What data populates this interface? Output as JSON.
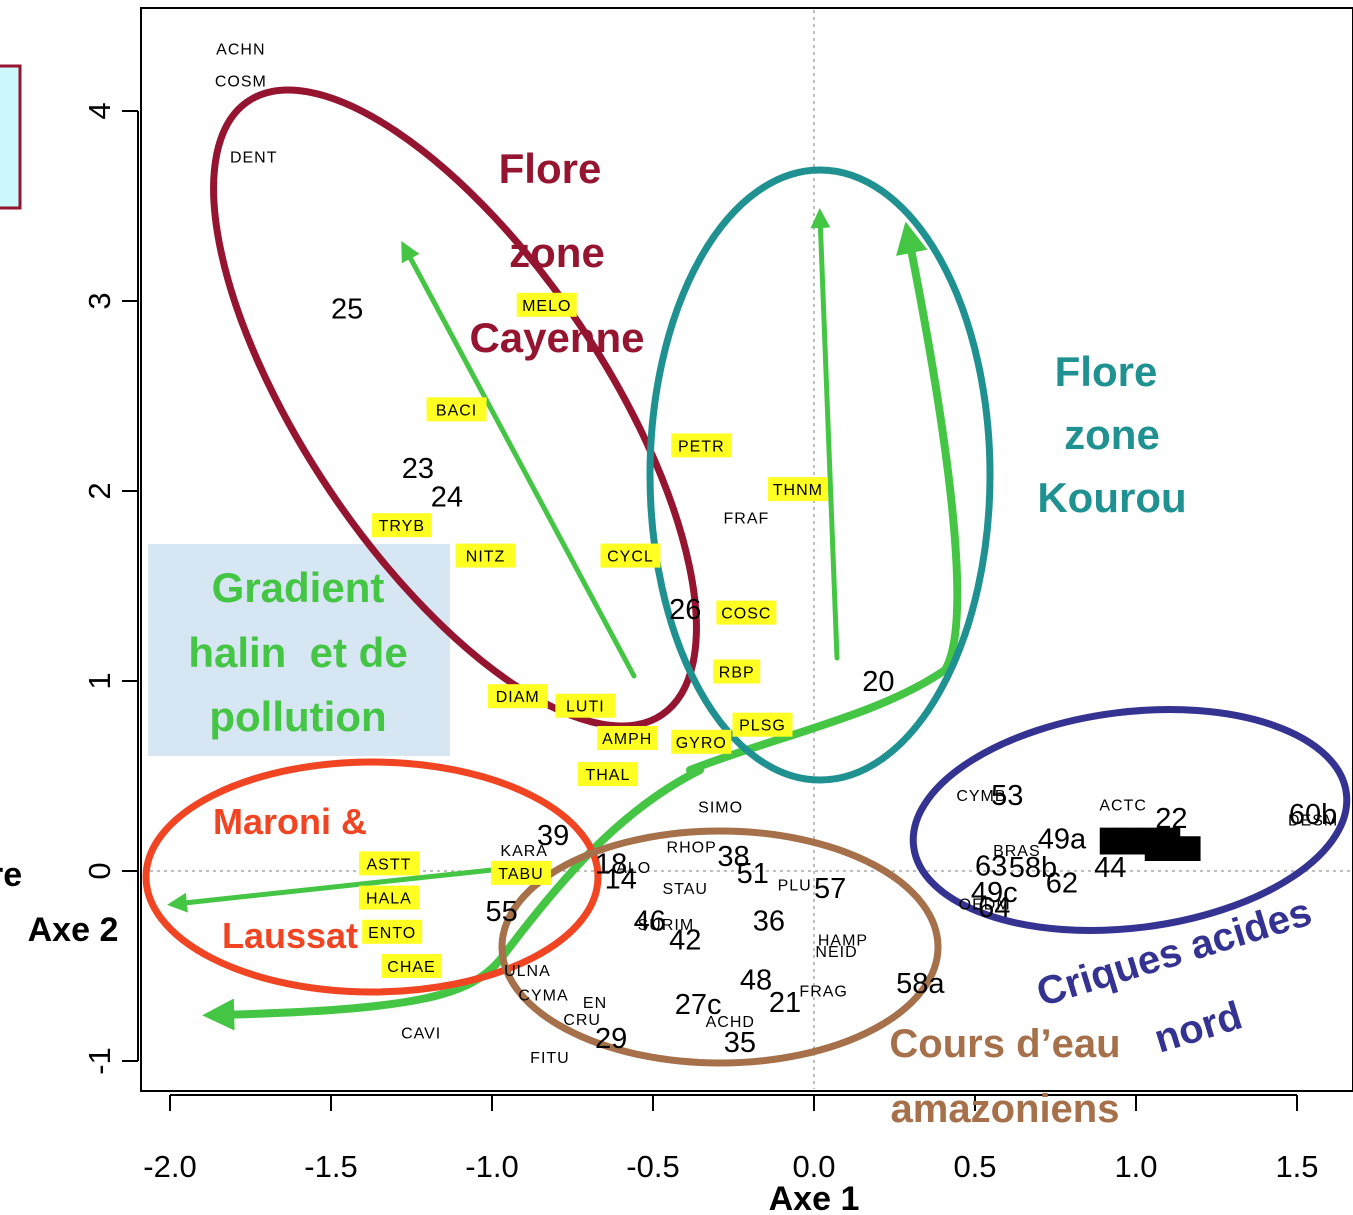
{
  "chart_data": {
    "type": "scatter",
    "title": "",
    "xlabel": "Axe 1",
    "ylabel": "Axe 2",
    "xlim": [
      -2.1,
      1.6
    ],
    "ylim": [
      -1.2,
      4.5
    ],
    "xticks": [
      "-2.0",
      "-1.5",
      "-1.0",
      "-0.5",
      "0.0",
      "0.5",
      "1.0",
      "1.5"
    ],
    "xtick_values": [
      -2.0,
      -1.5,
      -1.0,
      -0.5,
      0.0,
      0.5,
      1.0,
      1.5
    ],
    "yticks": [
      "-1",
      "0",
      "1",
      "2",
      "3",
      "4"
    ],
    "ytick_values": [
      -1,
      0,
      1,
      2,
      3,
      4
    ],
    "reference_lines": {
      "x": 0,
      "y": 0
    },
    "taxa_highlighted": [
      {
        "label": "MELO",
        "x": -0.83,
        "y": 2.98
      },
      {
        "label": "BACI",
        "x": -1.11,
        "y": 2.43
      },
      {
        "label": "PETR",
        "x": -0.35,
        "y": 2.24
      },
      {
        "label": "THNM",
        "x": -0.05,
        "y": 2.01
      },
      {
        "label": "TRYB",
        "x": -1.28,
        "y": 1.82
      },
      {
        "label": "NITZ",
        "x": -1.02,
        "y": 1.66
      },
      {
        "label": "CYCL",
        "x": -0.57,
        "y": 1.66
      },
      {
        "label": "COSC",
        "x": -0.21,
        "y": 1.36
      },
      {
        "label": "RBP",
        "x": -0.24,
        "y": 1.05
      },
      {
        "label": "DIAM",
        "x": -0.92,
        "y": 0.92
      },
      {
        "label": "LUTI",
        "x": -0.71,
        "y": 0.87
      },
      {
        "label": "PLSG",
        "x": -0.16,
        "y": 0.77
      },
      {
        "label": "AMPH",
        "x": -0.58,
        "y": 0.7
      },
      {
        "label": "GYRO",
        "x": -0.35,
        "y": 0.68
      },
      {
        "label": "THAL",
        "x": -0.64,
        "y": 0.51
      },
      {
        "label": "ASTT",
        "x": -1.32,
        "y": 0.04
      },
      {
        "label": "TABU",
        "x": -0.91,
        "y": -0.01
      },
      {
        "label": "HALA",
        "x": -1.32,
        "y": -0.14
      },
      {
        "label": "ENTO",
        "x": -1.31,
        "y": -0.32
      },
      {
        "label": "CHAE",
        "x": -1.25,
        "y": -0.5
      }
    ],
    "taxa": [
      {
        "label": "ACHN",
        "x": -1.78,
        "y": 4.33
      },
      {
        "label": "COSM",
        "x": -1.78,
        "y": 4.16
      },
      {
        "label": "DENT",
        "x": -1.74,
        "y": 3.76
      },
      {
        "label": "FRAF",
        "x": -0.21,
        "y": 1.86
      },
      {
        "label": "SIMO",
        "x": -0.29,
        "y": 0.34
      },
      {
        "label": "KARA",
        "x": -0.9,
        "y": 0.11
      },
      {
        "label": "RHOP",
        "x": -0.38,
        "y": 0.13
      },
      {
        "label": "ALO",
        "x": -0.56,
        "y": 0.02
      },
      {
        "label": "STAU",
        "x": -0.4,
        "y": -0.09
      },
      {
        "label": "PLU",
        "x": -0.06,
        "y": -0.07
      },
      {
        "label": "SURIM",
        "x": -0.46,
        "y": -0.28
      },
      {
        "label": "HAMP",
        "x": 0.09,
        "y": -0.36
      },
      {
        "label": "NEID",
        "x": 0.07,
        "y": -0.42
      },
      {
        "label": "FRAG",
        "x": 0.03,
        "y": -0.63
      },
      {
        "label": "ULNA",
        "x": -0.89,
        "y": -0.52
      },
      {
        "label": "CYMA",
        "x": -0.84,
        "y": -0.65
      },
      {
        "label": "EN",
        "x": -0.68,
        "y": -0.69
      },
      {
        "label": "CRU",
        "x": -0.72,
        "y": -0.78
      },
      {
        "label": "ACHD",
        "x": -0.26,
        "y": -0.79
      },
      {
        "label": "CAVI",
        "x": -1.22,
        "y": -0.85
      },
      {
        "label": "FITU",
        "x": -0.82,
        "y": -0.98
      },
      {
        "label": "CYMB",
        "x": 0.52,
        "y": 0.4
      },
      {
        "label": "ACTC",
        "x": 0.96,
        "y": 0.35
      },
      {
        "label": "DESM",
        "x": 1.55,
        "y": 0.27
      },
      {
        "label": "BRAS",
        "x": 0.63,
        "y": 0.11
      },
      {
        "label": "OEDM",
        "x": 0.53,
        "y": -0.17
      }
    ],
    "sites": [
      {
        "label": "25",
        "x": -1.45,
        "y": 2.96
      },
      {
        "label": "23",
        "x": -1.23,
        "y": 2.12
      },
      {
        "label": "24",
        "x": -1.14,
        "y": 1.97
      },
      {
        "label": "26",
        "x": -0.4,
        "y": 1.38
      },
      {
        "label": "20",
        "x": 0.2,
        "y": 1.0
      },
      {
        "label": "39",
        "x": -0.81,
        "y": 0.19
      },
      {
        "label": "18",
        "x": -0.63,
        "y": 0.04
      },
      {
        "label": "14",
        "x": -0.6,
        "y": -0.04
      },
      {
        "label": "38",
        "x": -0.25,
        "y": 0.08
      },
      {
        "label": "51",
        "x": -0.19,
        "y": -0.01
      },
      {
        "label": "57",
        "x": 0.05,
        "y": -0.09
      },
      {
        "label": "55",
        "x": -0.97,
        "y": -0.21
      },
      {
        "label": "46",
        "x": -0.51,
        "y": -0.26
      },
      {
        "label": "36",
        "x": -0.14,
        "y": -0.26
      },
      {
        "label": "42",
        "x": -0.4,
        "y": -0.36
      },
      {
        "label": "58a",
        "x": 0.33,
        "y": -0.59
      },
      {
        "label": "48",
        "x": -0.18,
        "y": -0.57
      },
      {
        "label": "21",
        "x": -0.09,
        "y": -0.69
      },
      {
        "label": "27c",
        "x": -0.36,
        "y": -0.7
      },
      {
        "label": "29",
        "x": -0.63,
        "y": -0.88
      },
      {
        "label": "35",
        "x": -0.23,
        "y": -0.9
      },
      {
        "label": "53",
        "x": 0.6,
        "y": 0.4
      },
      {
        "label": "60b",
        "x": 1.55,
        "y": 0.3
      },
      {
        "label": "49a",
        "x": 0.77,
        "y": 0.17
      },
      {
        "label": "22",
        "x": 1.11,
        "y": 0.28
      },
      {
        "label": "63",
        "x": 0.55,
        "y": 0.03
      },
      {
        "label": "58b",
        "x": 0.68,
        "y": 0.02
      },
      {
        "label": "44",
        "x": 0.92,
        "y": 0.02
      },
      {
        "label": "49c",
        "x": 0.56,
        "y": -0.11
      },
      {
        "label": "62",
        "x": 0.77,
        "y": -0.06
      },
      {
        "label": "64",
        "x": 0.56,
        "y": -0.19
      }
    ],
    "groups": [
      {
        "label_lines": [
          "Flore",
          "zone",
          "Cayenne"
        ],
        "color": "#951430"
      },
      {
        "label_lines": [
          "Flore",
          "zone",
          "Kourou"
        ],
        "color": "#1f9190"
      },
      {
        "label_lines": [
          "Gradient",
          "halin  et de",
          "pollution"
        ],
        "color": "#44c544"
      },
      {
        "label_lines": [
          "Maroni &",
          "Laussat"
        ],
        "color": "#f04422"
      },
      {
        "label_lines": [
          "Cours d’eau",
          "amazoniens"
        ],
        "color": "#a5704a"
      },
      {
        "label_lines": [
          "Criques acides",
          "nord"
        ],
        "color": "#353391"
      }
    ],
    "grid": false,
    "legend": "none"
  },
  "edge_labels": [
    "re"
  ],
  "colors": {
    "highlight": "#ffff22",
    "arrow": "#44c544",
    "gradient_box": "#d6e6f2",
    "corner_box_fill": "#ccf8fb",
    "corner_box_border": "#951430"
  }
}
